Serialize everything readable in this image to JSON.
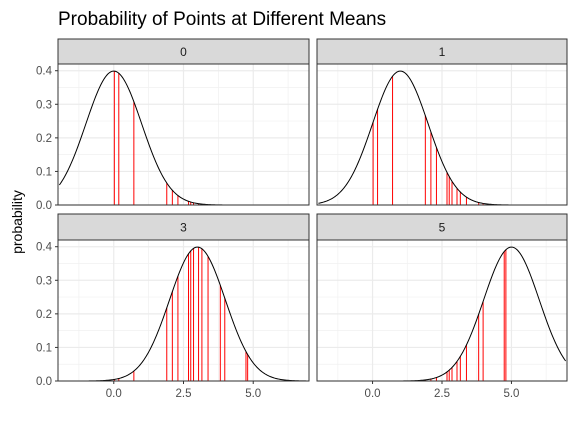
{
  "chart_data": {
    "type": "line",
    "title": "Probability of Points at Different Means",
    "xlabel": "",
    "ylabel": "probability",
    "xlim": [
      -2,
      7
    ],
    "ylim": [
      0,
      0.42
    ],
    "x_ticks": [
      0,
      2.5,
      5
    ],
    "x_tick_labels": [
      "0.0",
      "2.5",
      "5.0"
    ],
    "y_ticks": [
      0,
      0.1,
      0.2,
      0.3,
      0.4
    ],
    "y_tick_labels": [
      "0.0",
      "0.1",
      "0.2",
      "0.3",
      "0.4"
    ],
    "grid": true,
    "sd": 1,
    "curve_x_range": [
      -1.95,
      6.95
    ],
    "line_color": "#000000",
    "point_color": "#ff0000",
    "strip_fill": "#d9d9d9",
    "points_x": [
      0.02,
      0.18,
      0.72,
      1.9,
      2.1,
      2.3,
      2.68,
      2.76,
      2.86,
      3.04,
      3.16,
      3.38,
      3.82,
      3.98,
      4.74,
      4.8
    ],
    "facets": [
      {
        "label": "0",
        "mean": 0
      },
      {
        "label": "1",
        "mean": 1
      },
      {
        "label": "3",
        "mean": 3
      },
      {
        "label": "5",
        "mean": 5
      }
    ]
  }
}
